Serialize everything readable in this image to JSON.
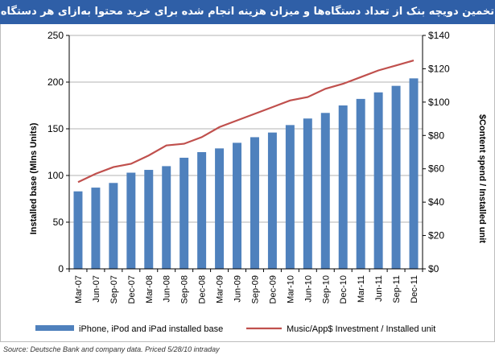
{
  "title": "تخمین دویچه بنک از تعداد دستگاه‌ها و میزان هزینه انجام شده برای خرید محتوا به‌ازای هر دستگاه",
  "source": "Source: Deutsche Bank and company data.    Priced 5/28/10 intraday",
  "chart_data": {
    "type": "bar",
    "categories": [
      "Mar-07",
      "Jun-07",
      "Sep-07",
      "Dec-07",
      "Mar-08",
      "Jun-08",
      "Sep-08",
      "Dec-08",
      "Mar-09",
      "Jun-09",
      "Sep-09",
      "Dec-09",
      "Mar-10",
      "Jun-10",
      "Sep-10",
      "Dec-10",
      "Mar-11",
      "Jun-11",
      "Sep-11",
      "Dec-11"
    ],
    "series": [
      {
        "name": "iPhone, iPod and iPad installed base",
        "type": "bar",
        "axis": "left",
        "color": "#4f81bd",
        "values": [
          83,
          87,
          92,
          103,
          106,
          110,
          119,
          125,
          129,
          135,
          141,
          146,
          154,
          161,
          167,
          175,
          182,
          189,
          196,
          204
        ]
      },
      {
        "name": "Music/App$ Investment / Installed unit",
        "type": "line",
        "axis": "right",
        "color": "#c0504d",
        "values": [
          52,
          57,
          61,
          63,
          68,
          74,
          75,
          79,
          85,
          89,
          93,
          97,
          101,
          103,
          108,
          111,
          115,
          119,
          122,
          125
        ]
      }
    ],
    "ylabel": "Installed base (Mlns Units)",
    "ylim": [
      0,
      250
    ],
    "yticks": [
      0,
      50,
      100,
      150,
      200,
      250
    ],
    "ytick_labels": [
      "0",
      "50",
      "100",
      "150",
      "200",
      "250"
    ],
    "y2label": "$Content spend / Installed unit",
    "y2lim": [
      0,
      140
    ],
    "y2ticks": [
      0,
      20,
      40,
      60,
      80,
      100,
      120,
      140
    ],
    "y2tick_labels": [
      "$0",
      "$20",
      "$40",
      "$60",
      "$80",
      "$100",
      "$120",
      "$140"
    ],
    "grid": true,
    "legend_position": "bottom"
  }
}
